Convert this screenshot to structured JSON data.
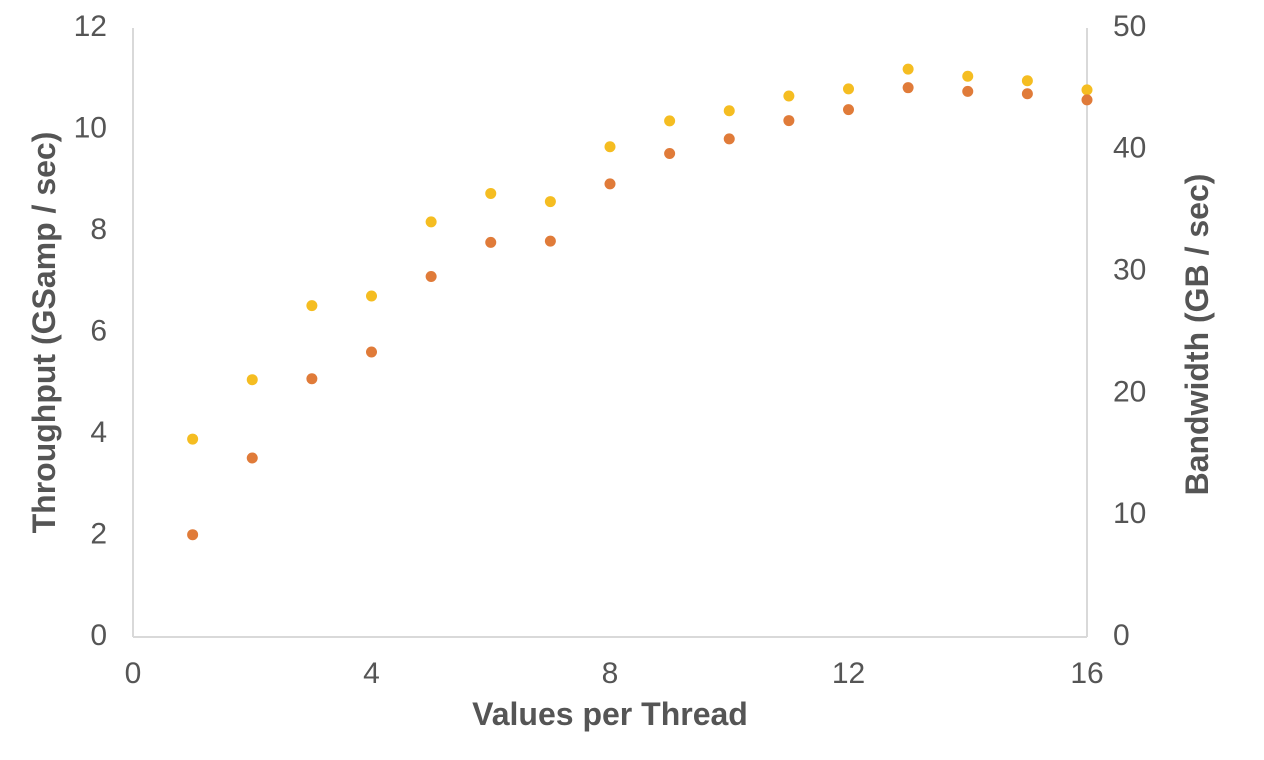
{
  "chart_data": {
    "type": "scatter",
    "title": "",
    "xlabel": "Values per Thread",
    "ylabel": "Throughput (GSamp / sec)",
    "y2label": "Bandwidth (GB / sec)",
    "xlim": [
      0,
      16
    ],
    "ylim": [
      0,
      12
    ],
    "y2lim": [
      0,
      50
    ],
    "xticks": [
      0,
      4,
      8,
      12,
      16
    ],
    "yticks": [
      0,
      2,
      4,
      6,
      8,
      10,
      12
    ],
    "y2ticks": [
      0,
      10,
      20,
      30,
      40,
      50
    ],
    "grid": false,
    "x": [
      1,
      2,
      3,
      4,
      5,
      6,
      7,
      8,
      9,
      10,
      11,
      12,
      13,
      14,
      15,
      16
    ],
    "series": [
      {
        "axis": "left",
        "color": "#f5bd21",
        "values": [
          3.9,
          5.07,
          6.53,
          6.72,
          8.18,
          8.74,
          8.58,
          9.66,
          10.17,
          10.37,
          10.66,
          10.8,
          11.19,
          11.05,
          10.96,
          10.78
        ]
      },
      {
        "axis": "right",
        "color": "#e07b39",
        "values": [
          8.4,
          14.7,
          21.2,
          23.4,
          29.6,
          32.4,
          32.5,
          37.2,
          39.7,
          40.9,
          42.4,
          43.3,
          45.1,
          44.8,
          44.6,
          44.1
        ]
      }
    ]
  }
}
